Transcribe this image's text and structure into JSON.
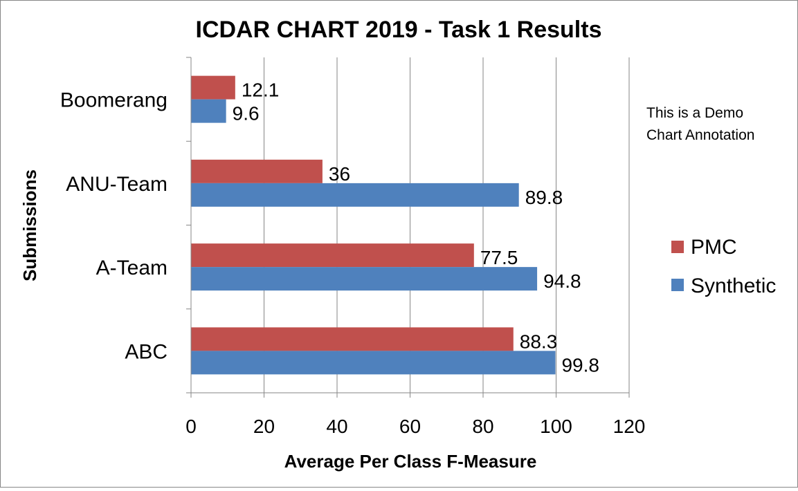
{
  "chart_data": {
    "type": "bar",
    "orientation": "horizontal",
    "title": "ICDAR CHART 2019 - Task 1 Results",
    "xlabel": "Average Per Class F-Measure",
    "ylabel": "Submissions",
    "xlim": [
      0,
      120
    ],
    "xticks": [
      0,
      20,
      40,
      60,
      80,
      100,
      120
    ],
    "grid": "vertical",
    "legend_position": "right",
    "categories": [
      "Boomerang",
      "ANU-Team",
      "A-Team",
      "ABC"
    ],
    "series": [
      {
        "name": "PMC",
        "color": "#C0504D",
        "values": [
          12.1,
          36,
          77.5,
          88.3
        ],
        "labels": [
          "12.1",
          "36",
          "77.5",
          "88.3"
        ]
      },
      {
        "name": "Synthetic",
        "color": "#4F81BD",
        "values": [
          9.6,
          89.8,
          94.8,
          99.8
        ],
        "labels": [
          "9.6",
          "89.8",
          "94.8",
          "99.8"
        ]
      }
    ],
    "annotation": [
      "This is a Demo",
      "Chart Annotation"
    ]
  }
}
